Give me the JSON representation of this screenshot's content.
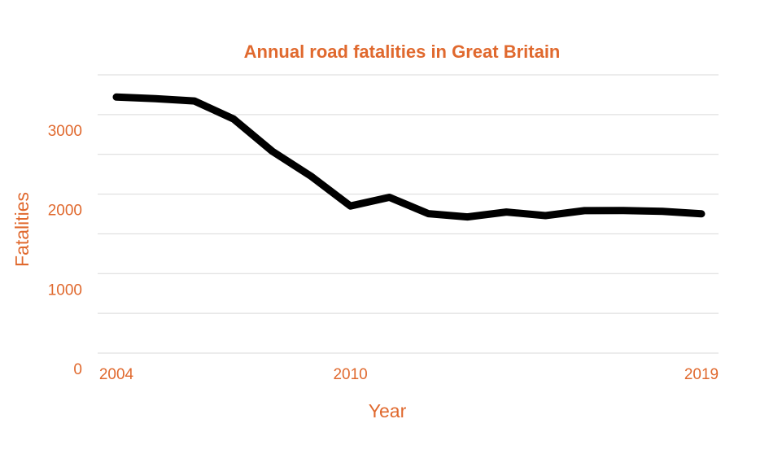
{
  "colors": {
    "accent": "#e0692e",
    "line": "#000000",
    "grid": "#d9d9d9"
  },
  "chart_data": {
    "type": "line",
    "title": "Annual road fatalities in Great Britain",
    "xlabel": "Year",
    "ylabel": "Fatalities",
    "x": [
      2004,
      2005,
      2006,
      2007,
      2008,
      2009,
      2010,
      2011,
      2012,
      2013,
      2014,
      2015,
      2016,
      2017,
      2018,
      2019
    ],
    "series": [
      {
        "values": [
          3221,
          3201,
          3172,
          2946,
          2538,
          2222,
          1850,
          1960,
          1754,
          1713,
          1775,
          1730,
          1792,
          1793,
          1784,
          1752
        ]
      }
    ],
    "x_ticks": [
      "2004",
      "2010",
      "2019"
    ],
    "y_ticks": [
      "0",
      "1000",
      "2000",
      "3000"
    ],
    "ylim": [
      0,
      3500
    ],
    "grid": true,
    "legend": "none"
  }
}
